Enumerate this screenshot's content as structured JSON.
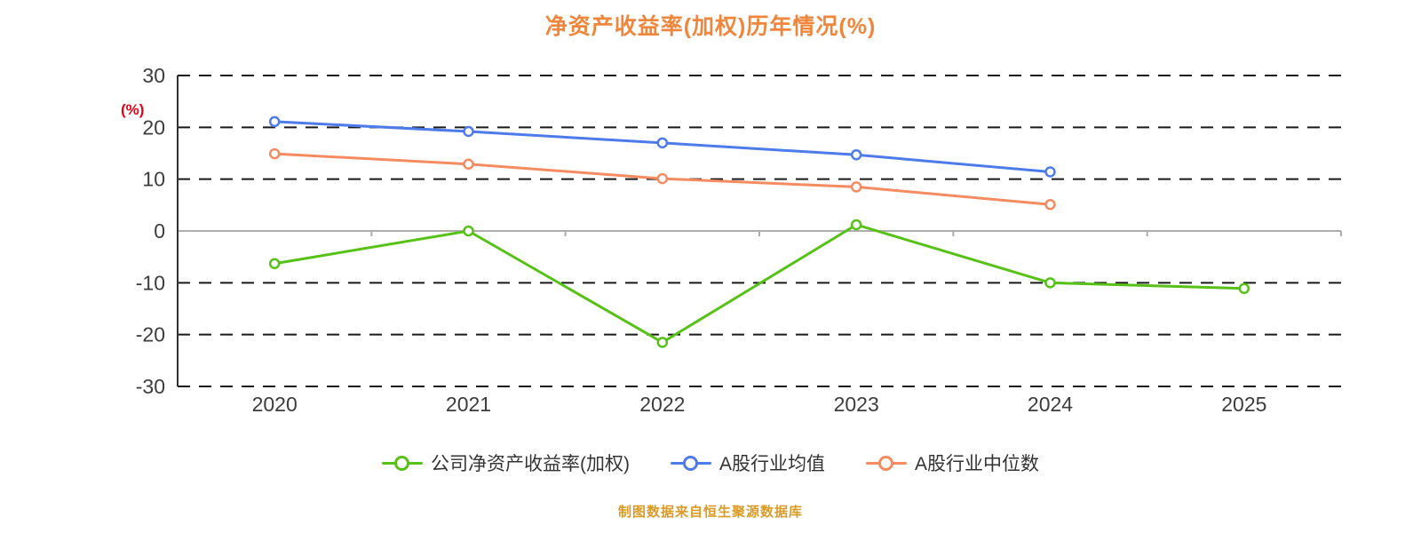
{
  "chart_data": {
    "type": "line",
    "title": "净资产收益率(加权)历年情况(%)",
    "x": [
      "2020",
      "2021",
      "2022",
      "2023",
      "2024",
      "2025"
    ],
    "xlabel": "",
    "ylabel": "(%)",
    "ylim": [
      -30,
      30
    ],
    "yticks": [
      30,
      20,
      10,
      0,
      -10,
      -20,
      -30
    ],
    "grid": true,
    "grid_style": "dashed",
    "legend_position": "bottom",
    "series": [
      {
        "name": "公司净资产收益率(加权)",
        "color": "#57c117",
        "values": [
          -6.3,
          0,
          -21.5,
          1.2,
          -10.0,
          -11.1
        ]
      },
      {
        "name": "A股行业均值",
        "color": "#4d7bea",
        "values": [
          21.1,
          19.2,
          17.0,
          14.7,
          11.4,
          null
        ]
      },
      {
        "name": "A股行业中位数",
        "color": "#f58b61",
        "values": [
          14.9,
          12.9,
          10.1,
          8.5,
          5.1,
          null
        ]
      }
    ]
  },
  "source_note": "制图数据来自恒生聚源数据库",
  "colors": {
    "title": "#f0863c",
    "y_unit_label": "#e60012",
    "source_note": "#d99b26",
    "axis_tick_label": "#3c3c3c",
    "gridline": "#1a1a1a",
    "zero_axis_line": "#aeaeae",
    "left_axis_line": "#333333"
  }
}
